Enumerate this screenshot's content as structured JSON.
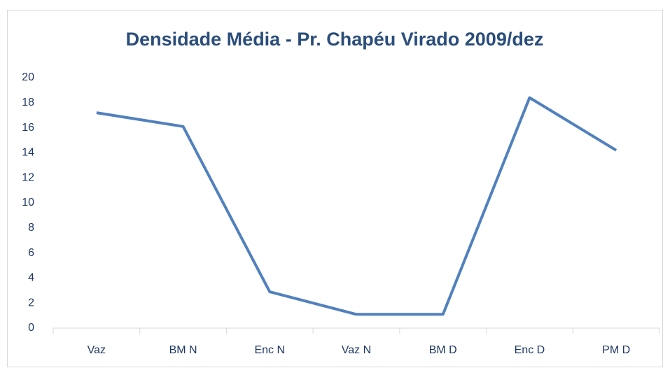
{
  "chart_data": {
    "type": "line",
    "title": "Densidade Média - Pr. Chapéu Virado 2009/dez",
    "categories": [
      "Vaz",
      "BM N",
      "Enc N",
      "Vaz N",
      "BM D",
      "Enc D",
      "PM D"
    ],
    "series": [
      {
        "name": "Densidade Média",
        "color": "#5181bd",
        "values": [
          17.2,
          16.1,
          2.9,
          1.1,
          1.1,
          18.4,
          14.2
        ]
      }
    ],
    "ylim": [
      0,
      20
    ],
    "yticks": [
      0,
      2,
      4,
      6,
      8,
      10,
      12,
      14,
      16,
      18,
      20
    ],
    "grid": false,
    "legend": false
  }
}
